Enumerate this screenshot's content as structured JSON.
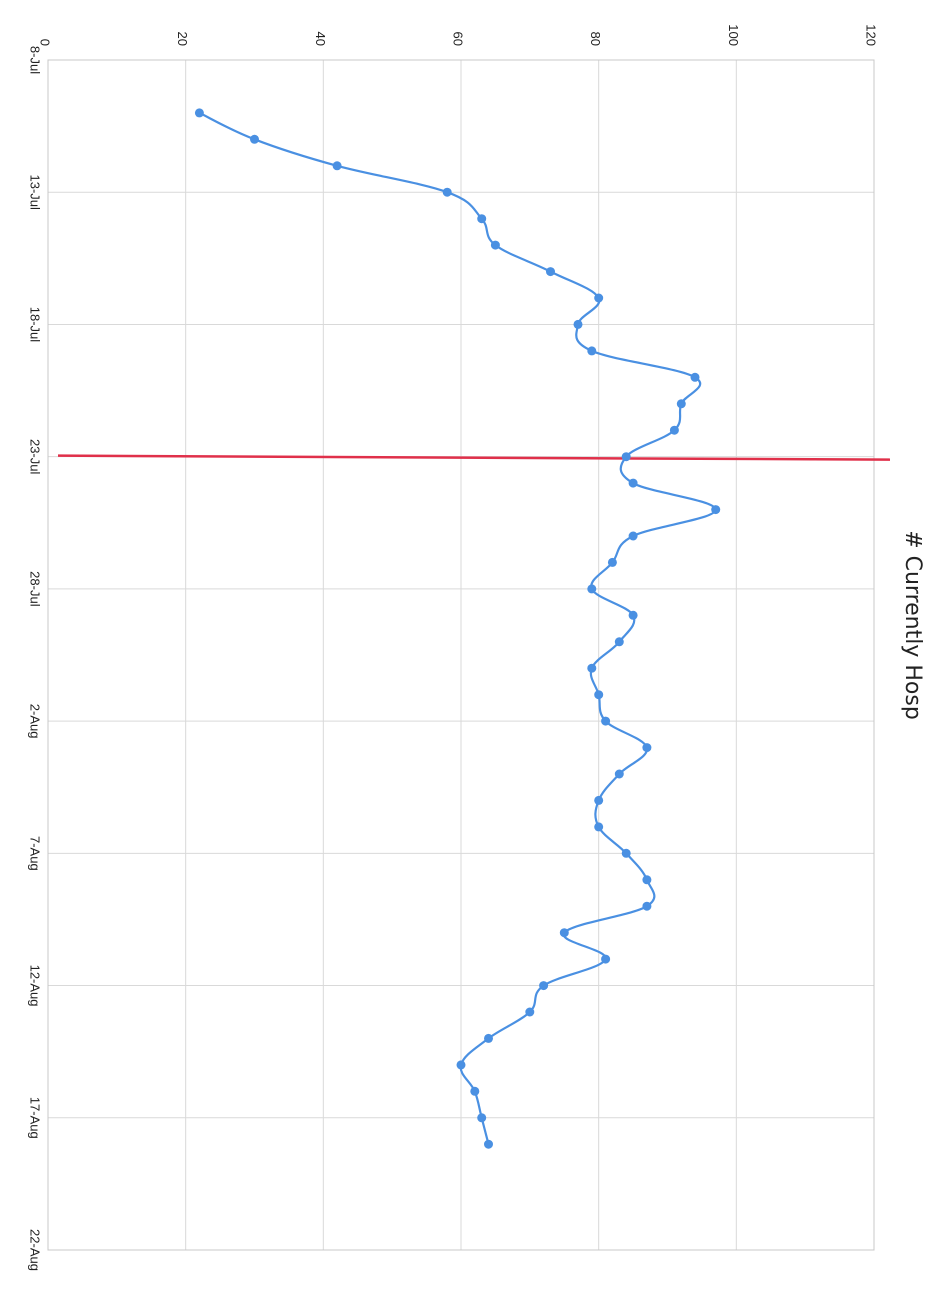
{
  "chart_data": {
    "type": "line",
    "title": "# Currently Hosp",
    "xlabel": "",
    "ylabel": "",
    "ylim": [
      0,
      120
    ],
    "yticks": [
      0,
      20,
      40,
      60,
      80,
      100,
      120
    ],
    "ytick_labels": [
      "0",
      "20",
      "40",
      "60",
      "80",
      "100",
      "120"
    ],
    "xlim": [
      "2020-07-08",
      "2020-08-22"
    ],
    "xticks": [
      "2020-07-08",
      "2020-07-13",
      "2020-07-18",
      "2020-07-23",
      "2020-07-28",
      "2020-08-02",
      "2020-08-07",
      "2020-08-12",
      "2020-08-17",
      "2020-08-22"
    ],
    "xtick_labels": [
      "8-Jul",
      "13-Jul",
      "18-Jul",
      "23-Jul",
      "28-Jul",
      "2-Aug",
      "7-Aug",
      "12-Aug",
      "17-Aug",
      "22-Aug"
    ],
    "grid": true,
    "orientation": "rotated 90° clockwise",
    "reference_line": {
      "x": "2020-07-23",
      "color": "#e0304a"
    },
    "series": [
      {
        "color": "#4a90e2",
        "points": [
          {
            "x": "2020-07-10",
            "y": 22
          },
          {
            "x": "2020-07-11",
            "y": 30
          },
          {
            "x": "2020-07-12",
            "y": 42
          },
          {
            "x": "2020-07-13",
            "y": 58
          },
          {
            "x": "2020-07-14",
            "y": 63
          },
          {
            "x": "2020-07-15",
            "y": 65
          },
          {
            "x": "2020-07-16",
            "y": 73
          },
          {
            "x": "2020-07-17",
            "y": 80
          },
          {
            "x": "2020-07-18",
            "y": 77
          },
          {
            "x": "2020-07-19",
            "y": 79
          },
          {
            "x": "2020-07-20",
            "y": 94
          },
          {
            "x": "2020-07-21",
            "y": 92
          },
          {
            "x": "2020-07-22",
            "y": 91
          },
          {
            "x": "2020-07-23",
            "y": 84
          },
          {
            "x": "2020-07-24",
            "y": 85
          },
          {
            "x": "2020-07-25",
            "y": 97
          },
          {
            "x": "2020-07-26",
            "y": 85
          },
          {
            "x": "2020-07-27",
            "y": 82
          },
          {
            "x": "2020-07-28",
            "y": 79
          },
          {
            "x": "2020-07-29",
            "y": 85
          },
          {
            "x": "2020-07-30",
            "y": 83
          },
          {
            "x": "2020-07-31",
            "y": 79
          },
          {
            "x": "2020-08-01",
            "y": 80
          },
          {
            "x": "2020-08-02",
            "y": 81
          },
          {
            "x": "2020-08-03",
            "y": 87
          },
          {
            "x": "2020-08-04",
            "y": 83
          },
          {
            "x": "2020-08-05",
            "y": 80
          },
          {
            "x": "2020-08-06",
            "y": 80
          },
          {
            "x": "2020-08-07",
            "y": 84
          },
          {
            "x": "2020-08-08",
            "y": 87
          },
          {
            "x": "2020-08-09",
            "y": 87
          },
          {
            "x": "2020-08-10",
            "y": 75
          },
          {
            "x": "2020-08-11",
            "y": 81
          },
          {
            "x": "2020-08-12",
            "y": 72
          },
          {
            "x": "2020-08-13",
            "y": 70
          },
          {
            "x": "2020-08-14",
            "y": 64
          },
          {
            "x": "2020-08-15",
            "y": 60
          },
          {
            "x": "2020-08-16",
            "y": 62
          },
          {
            "x": "2020-08-17",
            "y": 63
          },
          {
            "x": "2020-08-18",
            "y": 64
          }
        ]
      }
    ]
  }
}
